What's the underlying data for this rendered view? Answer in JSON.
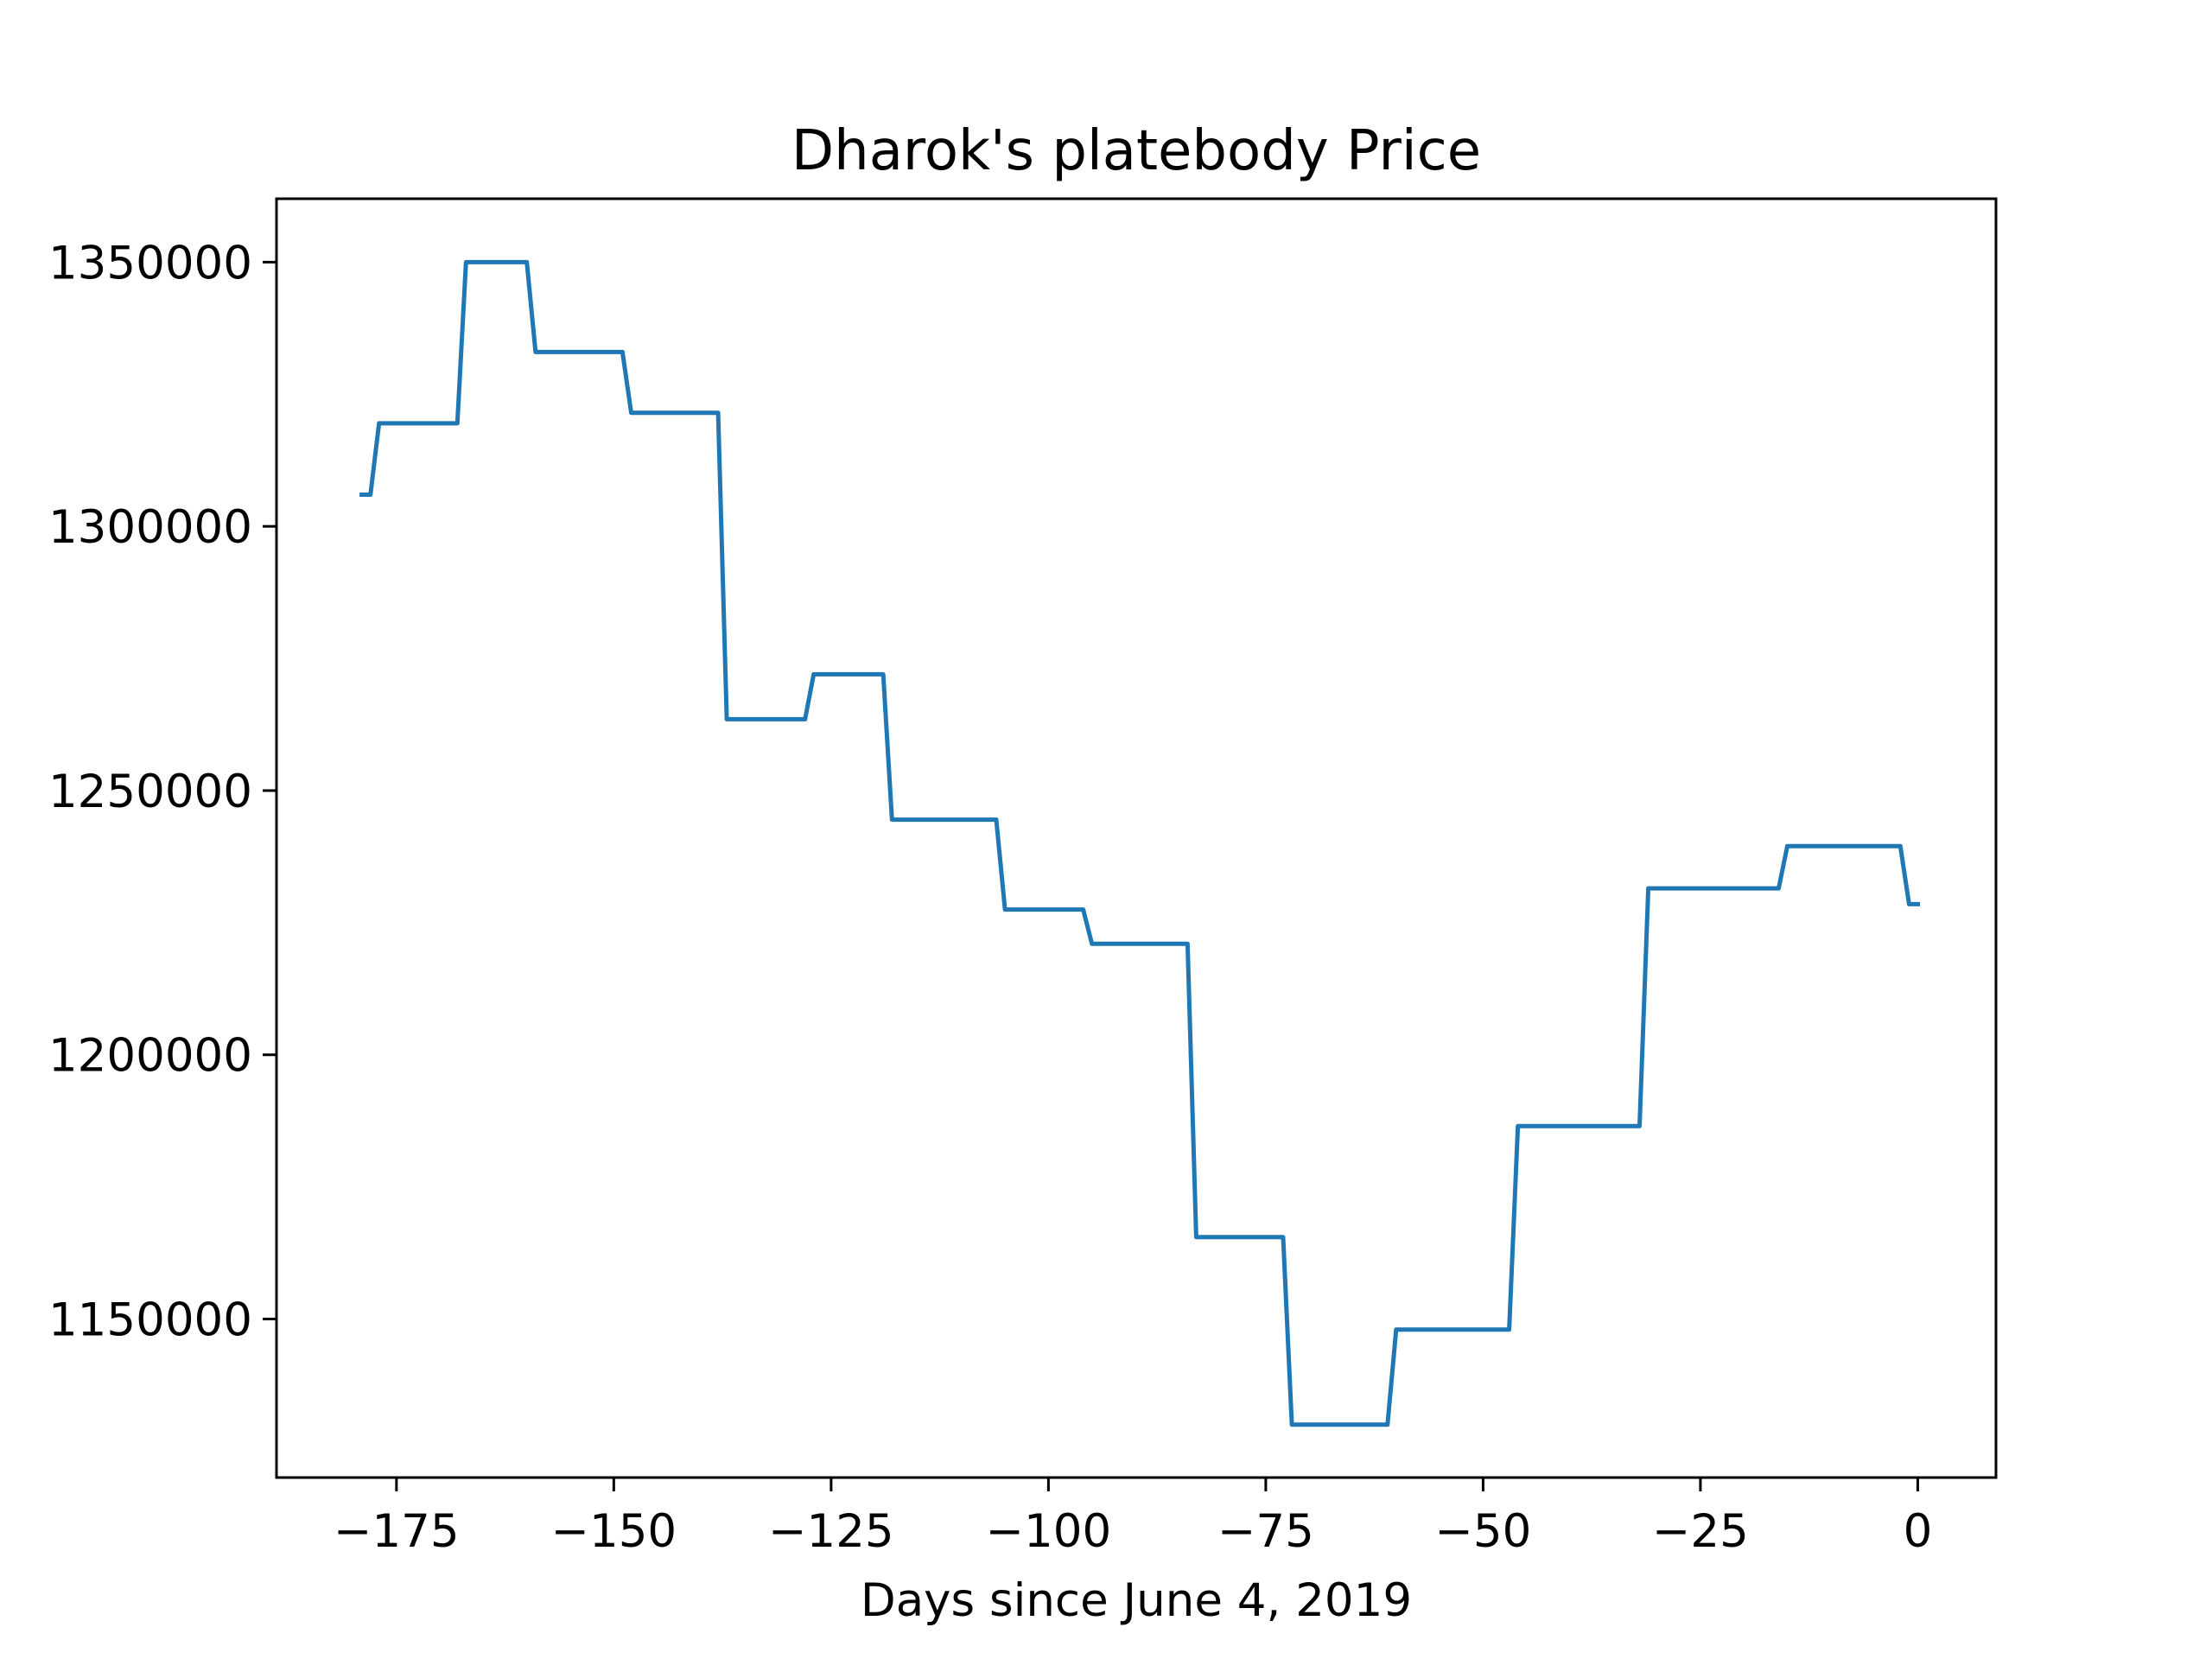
{
  "chart_data": {
    "type": "line",
    "title": "Dharok's platebody Price",
    "xlabel": "Days since June 4, 2019",
    "ylabel": "",
    "xlim": [
      -188.8,
      9
    ],
    "ylim": [
      1120000,
      1362000
    ],
    "xticks": [
      -175,
      -150,
      -125,
      -100,
      -75,
      -50,
      -25,
      0
    ],
    "xtick_labels": [
      "−175",
      "−150",
      "−125",
      "−100",
      "−75",
      "−50",
      "−25",
      "0"
    ],
    "yticks": [
      1150000,
      1200000,
      1250000,
      1300000,
      1350000
    ],
    "ytick_labels": [
      "1150000",
      "1200000",
      "1250000",
      "1300000",
      "1350000"
    ],
    "grid": false,
    "series": [
      {
        "color": "#1f77b4",
        "x": [
          -179,
          -178,
          -177,
          -176,
          -175,
          -174,
          -173,
          -172,
          -171,
          -170,
          -169,
          -168,
          -167,
          -166,
          -165,
          -164,
          -163,
          -162,
          -161,
          -160,
          -159,
          -158,
          -157,
          -156,
          -155,
          -154,
          -153,
          -152,
          -151,
          -150,
          -149,
          -148,
          -147,
          -146,
          -145,
          -144,
          -143,
          -142,
          -141,
          -140,
          -139,
          -138,
          -137,
          -136,
          -135,
          -134,
          -133,
          -132,
          -131,
          -130,
          -129,
          -128,
          -127,
          -126,
          -125,
          -124,
          -123,
          -122,
          -121,
          -120,
          -119,
          -118,
          -117,
          -116,
          -115,
          -114,
          -113,
          -112,
          -111,
          -110,
          -109,
          -108,
          -107,
          -106,
          -105,
          -104,
          -103,
          -102,
          -101,
          -100,
          -99,
          -98,
          -97,
          -96,
          -95,
          -94,
          -93,
          -92,
          -91,
          -90,
          -89,
          -88,
          -87,
          -86,
          -85,
          -84,
          -83,
          -82,
          -81,
          -80,
          -79,
          -78,
          -77,
          -76,
          -75,
          -74,
          -73,
          -72,
          -71,
          -70,
          -69,
          -68,
          -67,
          -66,
          -65,
          -64,
          -63,
          -62,
          -61,
          -60,
          -59,
          -58,
          -57,
          -56,
          -55,
          -54,
          -53,
          -52,
          -51,
          -50,
          -49,
          -48,
          -47,
          -46,
          -45,
          -44,
          -43,
          -42,
          -41,
          -40,
          -39,
          -38,
          -37,
          -36,
          -35,
          -34,
          -33,
          -32,
          -31,
          -30,
          -29,
          -28,
          -27,
          -26,
          -25,
          -24,
          -23,
          -22,
          -21,
          -20,
          -19,
          -18,
          -17,
          -16,
          -15,
          -14,
          -13,
          -12,
          -11,
          -10,
          -9,
          -8,
          -7,
          -6,
          -5,
          -4,
          -3,
          -2,
          -1,
          0
        ],
        "y": [
          1306000,
          1306000,
          1319500,
          1319500,
          1319500,
          1319500,
          1319500,
          1319500,
          1319500,
          1319500,
          1319500,
          1319500,
          1350000,
          1350000,
          1350000,
          1350000,
          1350000,
          1350000,
          1350000,
          1350000,
          1333000,
          1333000,
          1333000,
          1333000,
          1333000,
          1333000,
          1333000,
          1333000,
          1333000,
          1333000,
          1333000,
          1321500,
          1321500,
          1321500,
          1321500,
          1321500,
          1321500,
          1321500,
          1321500,
          1321500,
          1321500,
          1321500,
          1263500,
          1263500,
          1263500,
          1263500,
          1263500,
          1263500,
          1263500,
          1263500,
          1263500,
          1263500,
          1272000,
          1272000,
          1272000,
          1272000,
          1272000,
          1272000,
          1272000,
          1272000,
          1272000,
          1244500,
          1244500,
          1244500,
          1244500,
          1244500,
          1244500,
          1244500,
          1244500,
          1244500,
          1244500,
          1244500,
          1244500,
          1244500,
          1227500,
          1227500,
          1227500,
          1227500,
          1227500,
          1227500,
          1227500,
          1227500,
          1227500,
          1227500,
          1221000,
          1221000,
          1221000,
          1221000,
          1221000,
          1221000,
          1221000,
          1221000,
          1221000,
          1221000,
          1221000,
          1221000,
          1165500,
          1165500,
          1165500,
          1165500,
          1165500,
          1165500,
          1165500,
          1165500,
          1165500,
          1165500,
          1165500,
          1130000,
          1130000,
          1130000,
          1130000,
          1130000,
          1130000,
          1130000,
          1130000,
          1130000,
          1130000,
          1130000,
          1130000,
          1148000,
          1148000,
          1148000,
          1148000,
          1148000,
          1148000,
          1148000,
          1148000,
          1148000,
          1148000,
          1148000,
          1148000,
          1148000,
          1148000,
          1186500,
          1186500,
          1186500,
          1186500,
          1186500,
          1186500,
          1186500,
          1186500,
          1186500,
          1186500,
          1186500,
          1186500,
          1186500,
          1186500,
          1186500,
          1231500,
          1231500,
          1231500,
          1231500,
          1231500,
          1231500,
          1231500,
          1231500,
          1231500,
          1231500,
          1231500,
          1231500,
          1231500,
          1231500,
          1231500,
          1231500,
          1239500,
          1239500,
          1239500,
          1239500,
          1239500,
          1239500,
          1239500,
          1239500,
          1239500,
          1239500,
          1239500,
          1239500,
          1239500,
          1239500,
          1228500,
          1228500
        ]
      }
    ]
  }
}
